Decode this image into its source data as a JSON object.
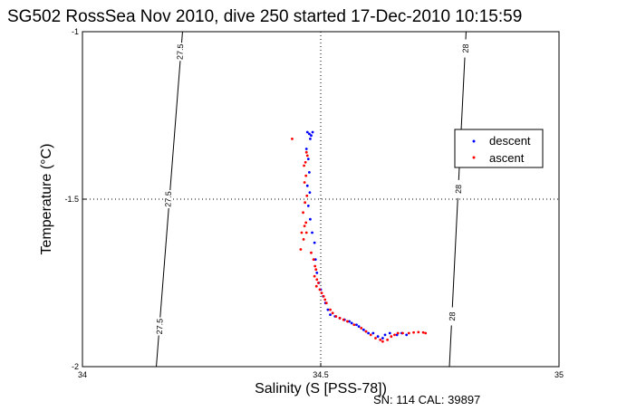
{
  "chart_data": {
    "type": "scatter",
    "title": "SG502 RossSea Nov 2010, dive 250 started 17-Dec-2010 10:15:59",
    "xlabel": "Salinity (S [PSS-78])",
    "ylabel": "Temperature (°C)",
    "xlim": [
      34,
      35
    ],
    "ylim": [
      -2,
      -1
    ],
    "x_ticks": [
      "34",
      "34.5",
      "35"
    ],
    "y_ticks": [
      "-1",
      "-1.5",
      "-2"
    ],
    "grid": "dotted at 34.5 and -1.5",
    "legend_position": "right",
    "footnote": "SN: 114  CAL: 39897",
    "contours": [
      {
        "label": "27.5",
        "points": [
          [
            34.21,
            -1
          ],
          [
            34.155,
            -2
          ]
        ],
        "labels": [
          {
            "x": 34.205,
            "y": -1.06
          },
          {
            "x": 34.18,
            "y": -1.5
          },
          {
            "x": 34.162,
            "y": -1.88
          }
        ]
      },
      {
        "label": "28",
        "points": [
          [
            34.805,
            -1
          ],
          [
            34.77,
            -2
          ]
        ],
        "labels": [
          {
            "x": 34.804,
            "y": -1.05
          },
          {
            "x": 34.789,
            "y": -1.47
          },
          {
            "x": 34.776,
            "y": -1.85
          }
        ]
      }
    ],
    "series": [
      {
        "name": "descent",
        "color": "#0000ff",
        "points": [
          [
            34.472,
            -1.3
          ],
          [
            34.476,
            -1.305
          ],
          [
            34.48,
            -1.31
          ],
          [
            34.483,
            -1.3
          ],
          [
            34.478,
            -1.32
          ],
          [
            34.47,
            -1.35
          ],
          [
            34.474,
            -1.38
          ],
          [
            34.476,
            -1.42
          ],
          [
            34.472,
            -1.46
          ],
          [
            34.477,
            -1.48
          ],
          [
            34.474,
            -1.52
          ],
          [
            34.478,
            -1.56
          ],
          [
            34.482,
            -1.6
          ],
          [
            34.487,
            -1.63
          ],
          [
            34.489,
            -1.68
          ],
          [
            34.492,
            -1.72
          ],
          [
            34.496,
            -1.75
          ],
          [
            34.5,
            -1.77
          ],
          [
            34.505,
            -1.79
          ],
          [
            34.51,
            -1.81
          ],
          [
            34.515,
            -1.83
          ],
          [
            34.52,
            -1.845
          ],
          [
            34.53,
            -1.85
          ],
          [
            34.54,
            -1.855
          ],
          [
            34.55,
            -1.86
          ],
          [
            34.56,
            -1.865
          ],
          [
            34.565,
            -1.87
          ],
          [
            34.575,
            -1.875
          ],
          [
            34.58,
            -1.88
          ],
          [
            34.59,
            -1.89
          ],
          [
            34.595,
            -1.895
          ],
          [
            34.6,
            -1.9
          ],
          [
            34.61,
            -1.9
          ],
          [
            34.62,
            -1.91
          ],
          [
            34.63,
            -1.915
          ],
          [
            34.635,
            -1.905
          ],
          [
            34.645,
            -1.9
          ],
          [
            34.66,
            -1.905
          ],
          [
            34.67,
            -1.9
          ],
          [
            34.68,
            -1.905
          ]
        ]
      },
      {
        "name": "ascent",
        "color": "#ff0000",
        "points": [
          [
            34.44,
            -1.32
          ],
          [
            34.47,
            -1.36
          ],
          [
            34.472,
            -1.37
          ],
          [
            34.468,
            -1.39
          ],
          [
            34.465,
            -1.4
          ],
          [
            34.469,
            -1.43
          ],
          [
            34.466,
            -1.45
          ],
          [
            34.471,
            -1.49
          ],
          [
            34.467,
            -1.51
          ],
          [
            34.463,
            -1.54
          ],
          [
            34.469,
            -1.57
          ],
          [
            34.466,
            -1.58
          ],
          [
            34.46,
            -1.6
          ],
          [
            34.47,
            -1.6
          ],
          [
            34.464,
            -1.62
          ],
          [
            34.458,
            -1.65
          ],
          [
            34.48,
            -1.66
          ],
          [
            34.485,
            -1.68
          ],
          [
            34.488,
            -1.7
          ],
          [
            34.49,
            -1.71
          ],
          [
            34.487,
            -1.73
          ],
          [
            34.492,
            -1.74
          ],
          [
            34.495,
            -1.75
          ],
          [
            34.491,
            -1.76
          ],
          [
            34.498,
            -1.77
          ],
          [
            34.502,
            -1.78
          ],
          [
            34.506,
            -1.79
          ],
          [
            34.509,
            -1.8
          ],
          [
            34.512,
            -1.81
          ],
          [
            34.52,
            -1.83
          ],
          [
            34.525,
            -1.84
          ],
          [
            34.532,
            -1.85
          ],
          [
            34.54,
            -1.855
          ],
          [
            34.548,
            -1.86
          ],
          [
            34.556,
            -1.865
          ],
          [
            34.57,
            -1.875
          ],
          [
            34.585,
            -1.885
          ],
          [
            34.595,
            -1.895
          ],
          [
            34.605,
            -1.905
          ],
          [
            34.615,
            -1.915
          ],
          [
            34.625,
            -1.92
          ],
          [
            34.63,
            -1.925
          ],
          [
            34.64,
            -1.92
          ],
          [
            34.648,
            -1.91
          ],
          [
            34.655,
            -1.905
          ],
          [
            34.662,
            -1.9
          ],
          [
            34.672,
            -1.9
          ],
          [
            34.685,
            -1.9
          ],
          [
            34.695,
            -1.898
          ],
          [
            34.705,
            -1.897
          ],
          [
            34.715,
            -1.898
          ],
          [
            34.72,
            -1.9
          ]
        ]
      }
    ]
  }
}
